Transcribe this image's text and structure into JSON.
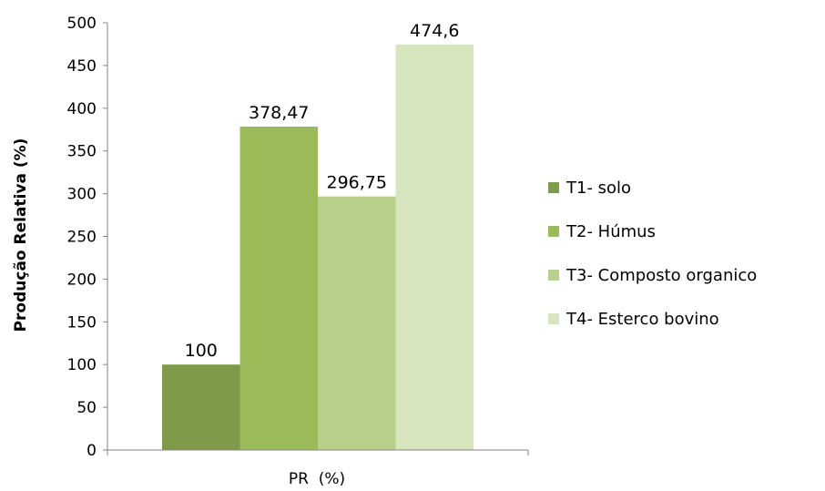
{
  "chart_data": {
    "type": "bar",
    "title": "",
    "xlabel": "PR  (%)",
    "ylabel": "Produção Relativa (%)",
    "ylim": [
      0,
      500
    ],
    "yticks": [
      0,
      50,
      100,
      150,
      200,
      250,
      300,
      350,
      400,
      450,
      500
    ],
    "grid": false,
    "legend_position": "right",
    "categories": [
      "PR  (%)"
    ],
    "series": [
      {
        "name": "T1- solo",
        "values": [
          100
        ],
        "label": "100",
        "color": "#7f9a48"
      },
      {
        "name": "T2- Húmus",
        "values": [
          378.47
        ],
        "label": "378,47",
        "color": "#9bbb59"
      },
      {
        "name": "T3- Composto organico",
        "values": [
          296.75
        ],
        "label": "296,75",
        "color": "#b8d08b"
      },
      {
        "name": "T4- Esterco bovino",
        "values": [
          474.6
        ],
        "label": "474,6",
        "color": "#d7e4bd"
      }
    ]
  }
}
